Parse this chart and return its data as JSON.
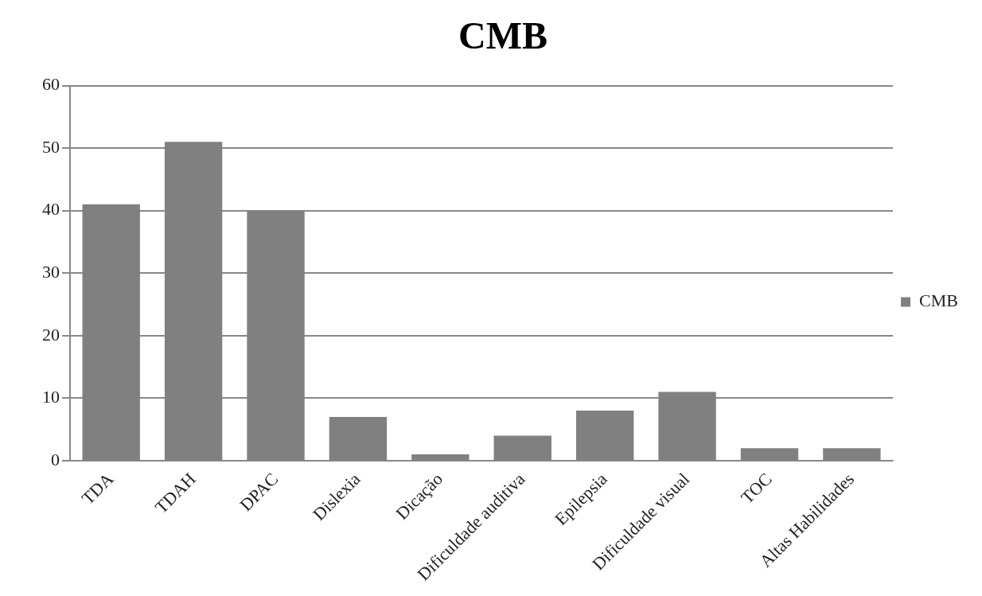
{
  "chart_data": {
    "type": "bar",
    "title": "CMB",
    "categories": [
      "TDA",
      "TDAH",
      "DPAC",
      "Dislexia",
      "Dicação",
      "Dificuldade auditiva",
      "Epilepsia",
      "Dificuldade visual",
      "TOC",
      "Altas Habilidades"
    ],
    "series": [
      {
        "name": "CMB",
        "color": "#808080",
        "values": [
          41,
          51,
          40,
          7,
          1,
          4,
          8,
          11,
          2,
          2
        ]
      }
    ],
    "ylim": [
      0,
      60
    ],
    "yticks": [
      0,
      10,
      20,
      30,
      40,
      50,
      60
    ],
    "grid": "y",
    "legend": "right"
  }
}
